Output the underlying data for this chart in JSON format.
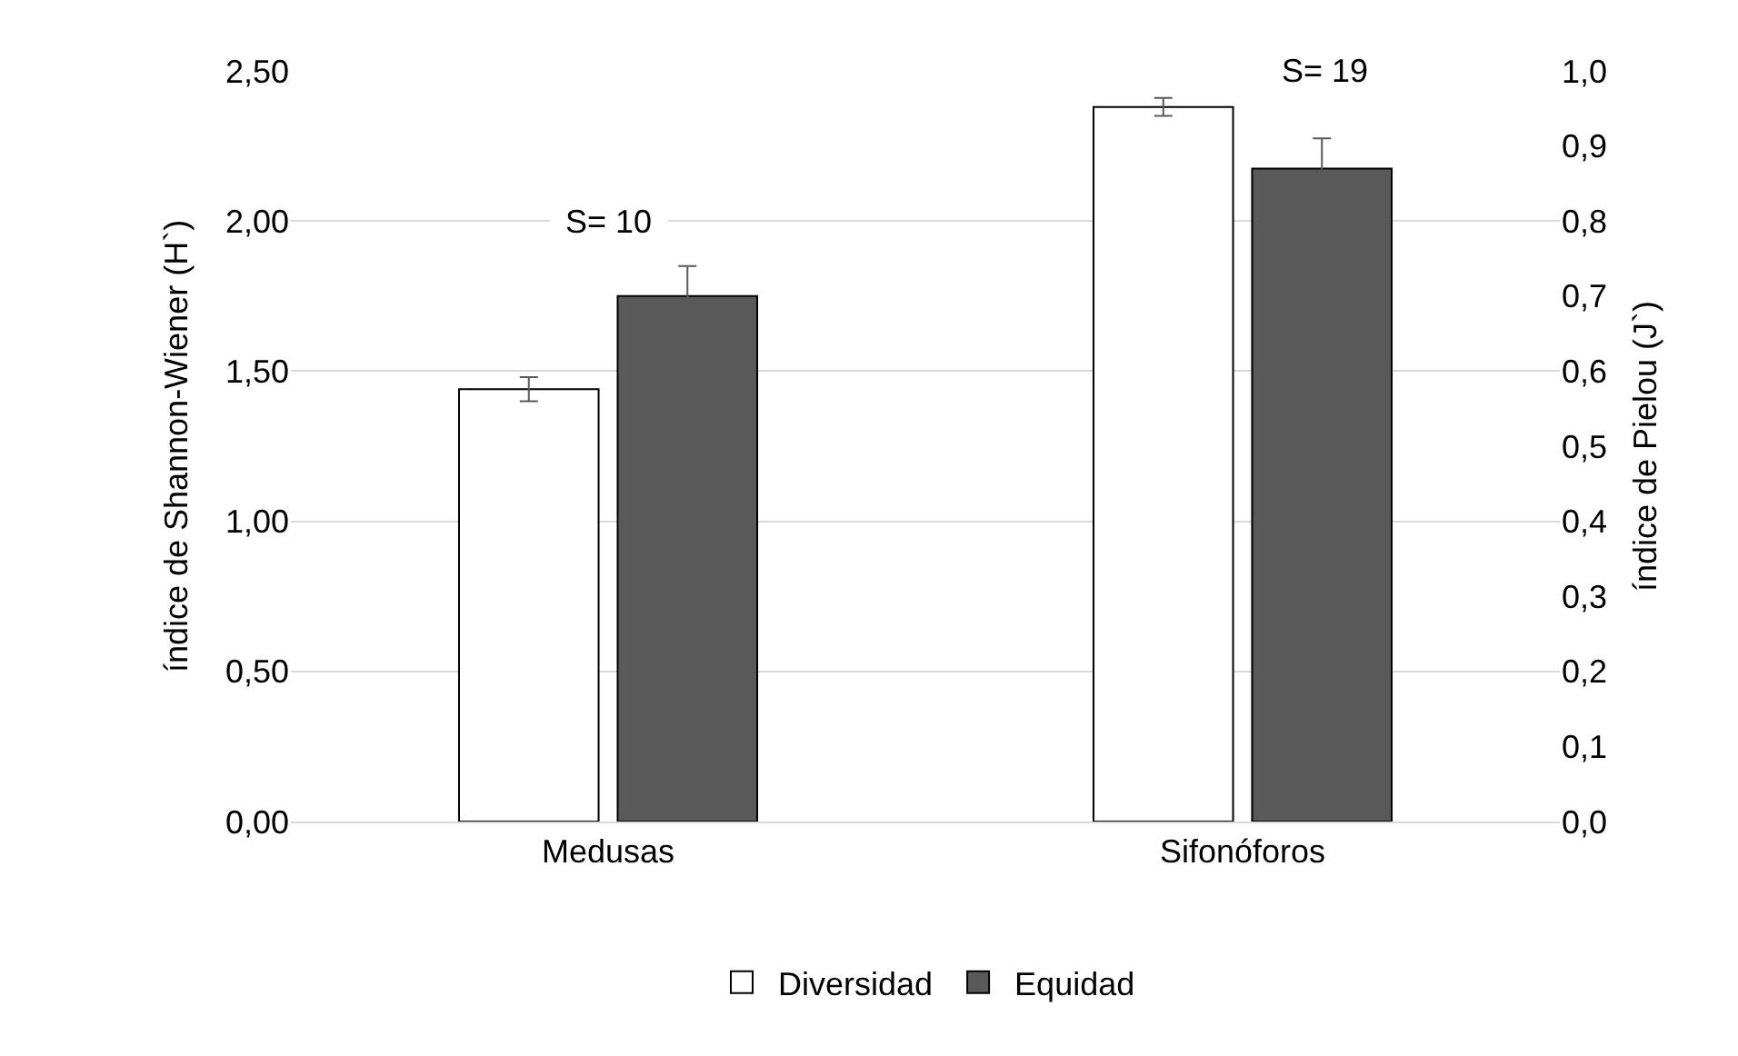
{
  "chart_data": {
    "type": "bar",
    "categories": [
      "Medusas",
      "Sifonóforos"
    ],
    "ylabel": "índice de Shannon-Wiener (H`)",
    "y2label": "índice de Pielou (J`)",
    "series": [
      {
        "name": "Diversidad",
        "color": "#ffffff",
        "values": [
          1.44,
          2.38
        ],
        "errors": [
          0.04,
          0.03
        ]
      },
      {
        "name": "Equidad",
        "color": "#595959",
        "values": [
          0.7,
          0.87
        ],
        "errors": [
          0.04,
          0.04
        ],
        "axis": "y2"
      }
    ],
    "ylim": [
      0,
      2.5
    ],
    "yticks": [
      {
        "value": 0,
        "label": "0,00"
      },
      {
        "value": 0.5,
        "label": "0,50"
      },
      {
        "value": 1,
        "label": "1,00"
      },
      {
        "value": 1.5,
        "label": "1,50"
      },
      {
        "value": 2,
        "label": "2,00"
      },
      {
        "value": 2.5,
        "label": "2,50"
      }
    ],
    "y2lim": [
      0,
      1.0
    ],
    "y2ticks": [
      {
        "value": 0,
        "label": "0,0"
      },
      {
        "value": 0.1,
        "label": "0,1"
      },
      {
        "value": 0.2,
        "label": "0,2"
      },
      {
        "value": 0.3,
        "label": "0,3"
      },
      {
        "value": 0.4,
        "label": "0,4"
      },
      {
        "value": 0.5,
        "label": "0,5"
      },
      {
        "value": 0.6,
        "label": "0,6"
      },
      {
        "value": 0.7,
        "label": "0,7"
      },
      {
        "value": 0.8,
        "label": "0,8"
      },
      {
        "value": 0.9,
        "label": "0,9"
      },
      {
        "value": 1.0,
        "label": "1,0"
      }
    ],
    "annotations": [
      "S= 10",
      "S= 19"
    ],
    "grid": "y",
    "legend": "bottom"
  }
}
